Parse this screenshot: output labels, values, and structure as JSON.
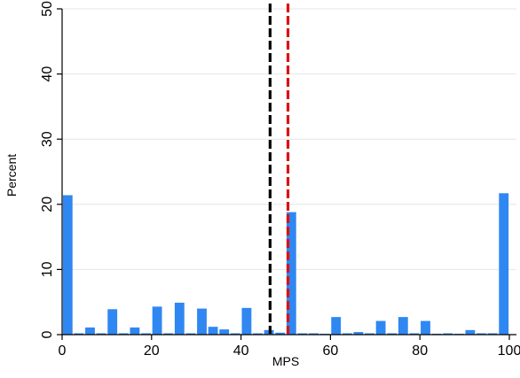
{
  "chart_data": {
    "type": "bar",
    "title": "",
    "xlabel": "MPS",
    "ylabel": "Percent",
    "xlim": [
      0,
      100
    ],
    "ylim": [
      0,
      50
    ],
    "bin_width": 2.5,
    "x_ticks": [
      0,
      20,
      40,
      60,
      80,
      100
    ],
    "y_ticks": [
      0,
      10,
      20,
      30,
      40,
      50
    ],
    "bars": [
      {
        "x": 1.25,
        "value": 21.4
      },
      {
        "x": 3.75,
        "value": 0.2
      },
      {
        "x": 6.25,
        "value": 1.1
      },
      {
        "x": 8.75,
        "value": 0.2
      },
      {
        "x": 11.25,
        "value": 3.9
      },
      {
        "x": 13.75,
        "value": 0.1
      },
      {
        "x": 16.25,
        "value": 1.1
      },
      {
        "x": 18.75,
        "value": 0.2
      },
      {
        "x": 21.25,
        "value": 4.3
      },
      {
        "x": 23.75,
        "value": 0.2
      },
      {
        "x": 26.25,
        "value": 4.9
      },
      {
        "x": 28.75,
        "value": 0.2
      },
      {
        "x": 31.25,
        "value": 4.0
      },
      {
        "x": 33.75,
        "value": 1.2
      },
      {
        "x": 36.25,
        "value": 0.8
      },
      {
        "x": 38.75,
        "value": 0.2
      },
      {
        "x": 41.25,
        "value": 4.1
      },
      {
        "x": 43.75,
        "value": 0.2
      },
      {
        "x": 46.25,
        "value": 0.7
      },
      {
        "x": 48.75,
        "value": 0.3
      },
      {
        "x": 51.25,
        "value": 18.8
      },
      {
        "x": 53.75,
        "value": 0.1
      },
      {
        "x": 56.25,
        "value": 0.1
      },
      {
        "x": 58.75,
        "value": 0.0
      },
      {
        "x": 61.25,
        "value": 2.7
      },
      {
        "x": 63.75,
        "value": 0.1
      },
      {
        "x": 66.25,
        "value": 0.4
      },
      {
        "x": 68.75,
        "value": 0.1
      },
      {
        "x": 71.25,
        "value": 2.1
      },
      {
        "x": 73.75,
        "value": 0.2
      },
      {
        "x": 76.25,
        "value": 2.7
      },
      {
        "x": 78.75,
        "value": 0.1
      },
      {
        "x": 81.25,
        "value": 2.1
      },
      {
        "x": 83.75,
        "value": 0.0
      },
      {
        "x": 86.25,
        "value": 0.2
      },
      {
        "x": 88.75,
        "value": 0.0
      },
      {
        "x": 91.25,
        "value": 0.7
      },
      {
        "x": 93.75,
        "value": 0.1
      },
      {
        "x": 96.25,
        "value": 0.1
      },
      {
        "x": 98.75,
        "value": 21.7
      }
    ],
    "reference_lines": [
      {
        "x": 46.5,
        "color": "#000000",
        "style": "dashed"
      },
      {
        "x": 50.5,
        "color": "#dd1111",
        "style": "dashed"
      }
    ],
    "bar_color": "#2f87f2",
    "grid": "horizontal",
    "legend": "none"
  }
}
